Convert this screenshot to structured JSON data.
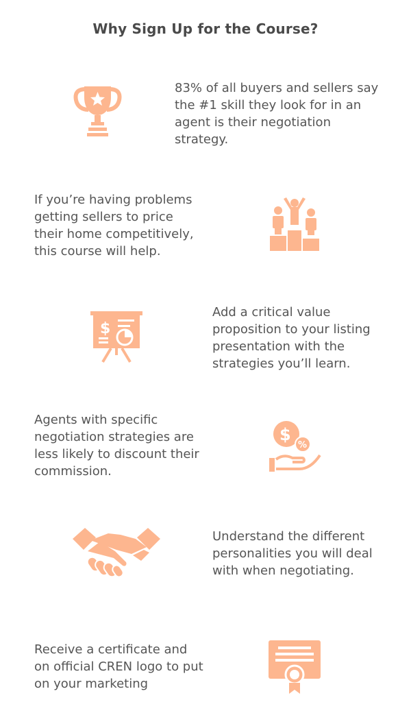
{
  "page": {
    "title": "Why Sign Up for the Course?"
  },
  "items": [
    {
      "icon": "trophy-icon",
      "text": "83% of all buyers and sellers say the #1 skill they look for in an agent is their negotiation strategy."
    },
    {
      "icon": "podium-winners-icon",
      "text": "If you’re having problems getting sellers to price their home competitively, this course will help."
    },
    {
      "icon": "presentation-board-icon",
      "text": "Add a critical value proposition to your listing presentation with the strategies you’ll learn."
    },
    {
      "icon": "hand-coins-icon",
      "text": "Agents with specific negotiation strategies are less likely to discount their commission."
    },
    {
      "icon": "handshake-icon",
      "text": "Understand the different personalities you will deal with when negotiating."
    },
    {
      "icon": "certificate-icon",
      "text": "Receive a certificate and on official CREN logo to put on your marketing"
    }
  ],
  "colors": {
    "accent": "#fdb68f",
    "accent_dark": "#f7a476",
    "text": "#555555",
    "title": "#4a4a4a"
  }
}
